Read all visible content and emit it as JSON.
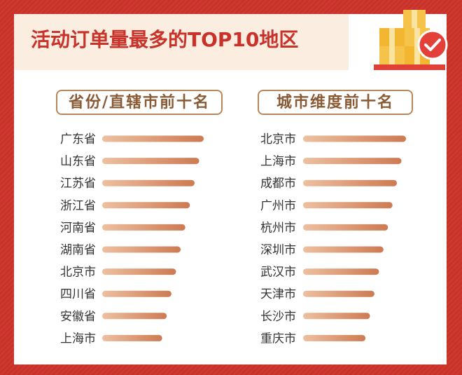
{
  "title": "活动订单量最多的TOP10地区",
  "colors": {
    "background": "#c8322a",
    "bar_start": "#e8b08a",
    "bar_end": "#cf7a50",
    "label": "#333333",
    "accent": "#c8322a"
  },
  "icons": [
    "package-boxes-icon",
    "check-badge-icon"
  ],
  "chart_data": [
    {
      "type": "bar",
      "orientation": "horizontal",
      "title": "省份/直辖市前十名",
      "categories": [
        "广东省",
        "山东省",
        "江苏省",
        "浙江省",
        "河南省",
        "湖南省",
        "北京市",
        "四川省",
        "安徽省",
        "上海市"
      ],
      "values": [
        100,
        95.5,
        91,
        86.4,
        81.9,
        77.3,
        72.7,
        68.2,
        63.6,
        59.1
      ],
      "xlim": [
        0,
        100
      ],
      "grid": false,
      "legend": "none",
      "value_labels": false
    },
    {
      "type": "bar",
      "orientation": "horizontal",
      "title": "城市维度前十名",
      "categories": [
        "北京市",
        "上海市",
        "成都市",
        "广州市",
        "杭州市",
        "深圳市",
        "武汉市",
        "天津市",
        "长沙市",
        "重庆市"
      ],
      "values": [
        100,
        95.6,
        91.2,
        86.9,
        82.5,
        78.1,
        73.7,
        69.3,
        65,
        60.6
      ],
      "xlim": [
        0,
        100
      ],
      "grid": false,
      "legend": "none",
      "value_labels": false
    }
  ]
}
